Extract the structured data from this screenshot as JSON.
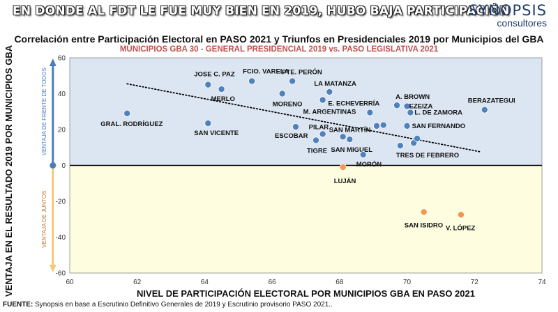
{
  "header": {
    "banner": "EN DONDE AL FDT LE FUE MUY BIEN EN 2019, HUBO BAJA PARTICIPACIÓN",
    "logo_main": "SYNOPSIS",
    "logo_sub": "consultores"
  },
  "source": {
    "prefix": "FUENTE:",
    "text": " Synopsis en base a Escrutinio Definitivo Generales de 2019 y Escrutinio provisorio PASO 2021.."
  },
  "colors": {
    "upper_band": "#dce6f2",
    "lower_band": "#fefde0",
    "fdt_point": "#4f81bd",
    "juntos_point": "#f79646",
    "up_arrow": "#4a7ebb",
    "down_arrow": "#f2c879",
    "up_label": "#4a7ebb",
    "down_label": "#c0783a"
  },
  "chart_data": {
    "type": "scatter",
    "title": "Correlación entre Participación Electoral en PASO 2021 y Triunfos en Presidenciales 2019 por Municipios del GBA",
    "subtitle": "MUNICIPIOS GBA 30 - GENERAL PRESIDENCIAL 2019 vs. PASO LEGISLATIVA 2021",
    "xlabel": "NIVEL DE PARTICIPACIÓN ELECTORAL POR MUNICIPIOS GBA EN PASO 2021",
    "ylabel": "VENTAJA EN EL RESULTADO 2019 POR MUNICIPIOS GBA",
    "upper_band_label": "VENTAJA DE FRENTE DE TODOS",
    "lower_band_label": "VENTAJA DE JUNTOS",
    "xlim": [
      60,
      74
    ],
    "ylim": [
      -60,
      60
    ],
    "xticks": [
      60,
      62,
      64,
      66,
      68,
      70,
      72,
      74
    ],
    "yticks": [
      -60,
      -40,
      -20,
      0,
      20,
      40,
      60
    ],
    "trendline": {
      "x": [
        61.7,
        72.2
      ],
      "y": [
        45.5,
        7.5
      ]
    },
    "points": [
      {
        "label": "GRAL. RODRÍGUEZ",
        "x": 61.7,
        "y": 29
      },
      {
        "label": "JOSE C. PAZ",
        "x": 64.1,
        "y": 45
      },
      {
        "label": "MERLO",
        "x": 64.5,
        "y": 42.5
      },
      {
        "label": "SAN VICENTE",
        "x": 64.1,
        "y": 23.5
      },
      {
        "label": "FCIO. VARELA",
        "x": 65.4,
        "y": 47
      },
      {
        "label": "MORENO",
        "x": 66.3,
        "y": 40
      },
      {
        "label": "PTE. PERÓN",
        "x": 66.6,
        "y": 47
      },
      {
        "label": "ESCOBAR",
        "x": 66.7,
        "y": 21.5
      },
      {
        "label": "LA MATANZA",
        "x": 67.7,
        "y": 41
      },
      {
        "label": "M. ARGENTINAS",
        "x": 67.5,
        "y": 36.5
      },
      {
        "label": "PILAR",
        "x": 67.5,
        "y": 17.5
      },
      {
        "label": "TIGRE",
        "x": 67.3,
        "y": 14
      },
      {
        "label": "SAN MARTÍN",
        "x": 68.1,
        "y": 16
      },
      {
        "label": "SAN MIGUEL",
        "x": 68.3,
        "y": 14.5
      },
      {
        "label": "E. ECHEVERRÍA",
        "x": 68.9,
        "y": 29.5
      },
      {
        "label": "MORÓN",
        "x": 68.7,
        "y": 6
      },
      {
        "label": "LUJÁN",
        "x": 68.1,
        "y": -1
      },
      {
        "label": "A. BROWN",
        "x": 69.7,
        "y": 33.5
      },
      {
        "label": "EZEIZA",
        "x": 70.0,
        "y": 33
      },
      {
        "label": "L. DE ZAMORA",
        "x": 70.1,
        "y": 29.5
      },
      {
        "label": "SAN FERNANDO",
        "x": 70.0,
        "y": 22
      },
      {
        "label": "TRES DE FEBRERO",
        "x": 69.8,
        "y": 11
      },
      {
        "label": "BERAZATEGUI",
        "x": 72.3,
        "y": 31
      },
      {
        "label": "SAN ISIDRO",
        "x": 70.5,
        "y": -26
      },
      {
        "label": "V. LÓPEZ",
        "x": 71.6,
        "y": -27.5
      },
      {
        "label": "",
        "x": 69.1,
        "y": 22
      },
      {
        "label": "",
        "x": 69.3,
        "y": 22.5
      },
      {
        "label": "",
        "x": 70.2,
        "y": 12.5
      },
      {
        "label": "",
        "x": 70.3,
        "y": 15
      }
    ]
  }
}
